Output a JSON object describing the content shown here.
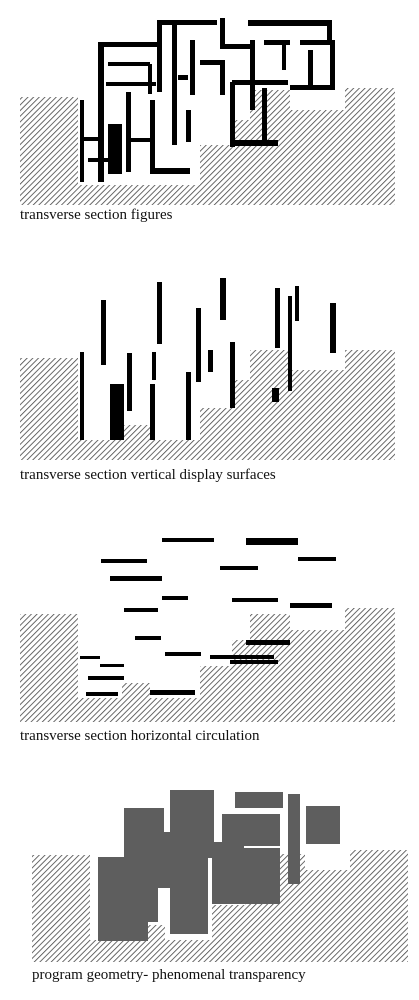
{
  "panels": [
    {
      "caption": "transverse section figures"
    },
    {
      "caption": "transverse section vertical display surfaces"
    },
    {
      "caption": "transverse section horizontal circulation"
    },
    {
      "caption": "program geometry- phenomenal transparency"
    }
  ],
  "colors": {
    "hatch_line": "#444444",
    "figure_fill": "#000000",
    "program_fill": "#5e5e5e",
    "background": "#ffffff"
  }
}
